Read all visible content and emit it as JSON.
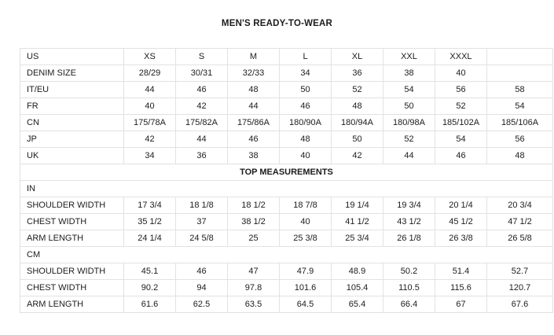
{
  "title": "MEN'S READY-TO-WEAR",
  "colors": {
    "background": "#ffffff",
    "border": "#e2e2e2",
    "text": "#1c1c1c"
  },
  "chart_data": {
    "type": "table",
    "title": "MEN'S READY-TO-WEAR",
    "size_rows": [
      {
        "label": "US",
        "values": [
          "XS",
          "S",
          "M",
          "L",
          "XL",
          "XXL",
          "XXXL",
          ""
        ]
      },
      {
        "label": "DENIM SIZE",
        "values": [
          "28/29",
          "30/31",
          "32/33",
          "34",
          "36",
          "38",
          "40",
          ""
        ]
      },
      {
        "label": "IT/EU",
        "values": [
          "44",
          "46",
          "48",
          "50",
          "52",
          "54",
          "56",
          "58"
        ]
      },
      {
        "label": "FR",
        "values": [
          "40",
          "42",
          "44",
          "46",
          "48",
          "50",
          "52",
          "54"
        ]
      },
      {
        "label": "CN",
        "values": [
          "175/78A",
          "175/82A",
          "175/86A",
          "180/90A",
          "180/94A",
          "180/98A",
          "185/102A",
          "185/106A"
        ]
      },
      {
        "label": "JP",
        "values": [
          "42",
          "44",
          "46",
          "48",
          "50",
          "52",
          "54",
          "56"
        ]
      },
      {
        "label": "UK",
        "values": [
          "34",
          "36",
          "38",
          "40",
          "42",
          "44",
          "46",
          "48"
        ]
      }
    ],
    "section_header": "TOP MEASUREMENTS",
    "inches_section_label": "IN",
    "inches_rows": [
      {
        "label": "SHOULDER WIDTH",
        "values": [
          "17 3/4",
          "18 1/8",
          "18 1/2",
          "18 7/8",
          "19 1/4",
          "19 3/4",
          "20 1/4",
          "20 3/4"
        ]
      },
      {
        "label": "CHEST WIDTH",
        "values": [
          "35 1/2",
          "37",
          "38 1/2",
          "40",
          "41 1/2",
          "43 1/2",
          "45 1/2",
          "47 1/2"
        ]
      },
      {
        "label": "ARM LENGTH",
        "values": [
          "24 1/4",
          "24 5/8",
          "25",
          "25 3/8",
          "25 3/4",
          "26 1/8",
          "26 3/8",
          "26 5/8"
        ]
      }
    ],
    "cm_section_label": "CM",
    "cm_rows": [
      {
        "label": "SHOULDER WIDTH",
        "values": [
          "45.1",
          "46",
          "47",
          "47.9",
          "48.9",
          "50.2",
          "51.4",
          "52.7"
        ]
      },
      {
        "label": "CHEST WIDTH",
        "values": [
          "90.2",
          "94",
          "97.8",
          "101.6",
          "105.4",
          "110.5",
          "115.6",
          "120.7"
        ]
      },
      {
        "label": "ARM LENGTH",
        "values": [
          "61.6",
          "62.5",
          "63.5",
          "64.5",
          "65.4",
          "66.4",
          "67",
          "67.6"
        ]
      }
    ]
  }
}
